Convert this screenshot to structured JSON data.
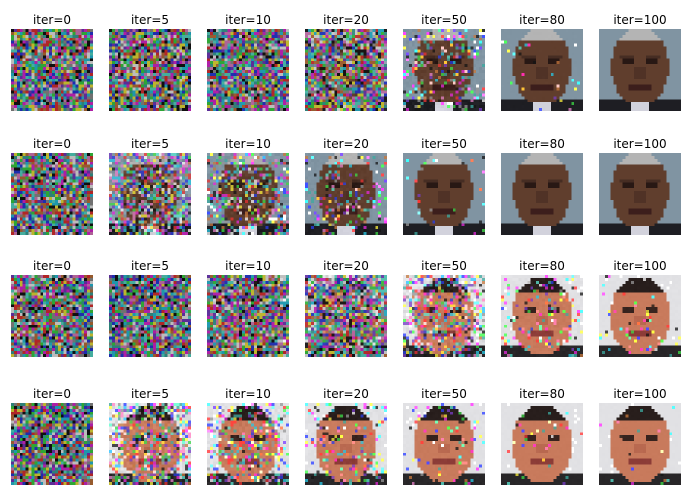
{
  "rows": [
    {
      "subject": "face-a",
      "cells": [
        {
          "title": "iter=0",
          "clarity": 0.0
        },
        {
          "title": "iter=5",
          "clarity": 0.0
        },
        {
          "title": "iter=10",
          "clarity": 0.02
        },
        {
          "title": "iter=20",
          "clarity": 0.08
        },
        {
          "title": "iter=50",
          "clarity": 0.72
        },
        {
          "title": "iter=80",
          "clarity": 0.97
        },
        {
          "title": "iter=100",
          "clarity": 1.0
        }
      ]
    },
    {
      "subject": "face-a",
      "cells": [
        {
          "title": "iter=0",
          "clarity": 0.0
        },
        {
          "title": "iter=5",
          "clarity": 0.3
        },
        {
          "title": "iter=10",
          "clarity": 0.55
        },
        {
          "title": "iter=20",
          "clarity": 0.82
        },
        {
          "title": "iter=50",
          "clarity": 0.98
        },
        {
          "title": "iter=80",
          "clarity": 1.0
        },
        {
          "title": "iter=100",
          "clarity": 1.0
        }
      ]
    },
    {
      "subject": "face-b",
      "cells": [
        {
          "title": "iter=0",
          "clarity": 0.0
        },
        {
          "title": "iter=5",
          "clarity": 0.0
        },
        {
          "title": "iter=10",
          "clarity": 0.02
        },
        {
          "title": "iter=20",
          "clarity": 0.08
        },
        {
          "title": "iter=50",
          "clarity": 0.45
        },
        {
          "title": "iter=80",
          "clarity": 0.8
        },
        {
          "title": "iter=100",
          "clarity": 0.92
        }
      ]
    },
    {
      "subject": "face-b",
      "cells": [
        {
          "title": "iter=0",
          "clarity": 0.0
        },
        {
          "title": "iter=5",
          "clarity": 0.4
        },
        {
          "title": "iter=10",
          "clarity": 0.62
        },
        {
          "title": "iter=20",
          "clarity": 0.8
        },
        {
          "title": "iter=50",
          "clarity": 0.9
        },
        {
          "title": "iter=80",
          "clarity": 0.94
        },
        {
          "title": "iter=100",
          "clarity": 0.96
        }
      ]
    }
  ]
}
